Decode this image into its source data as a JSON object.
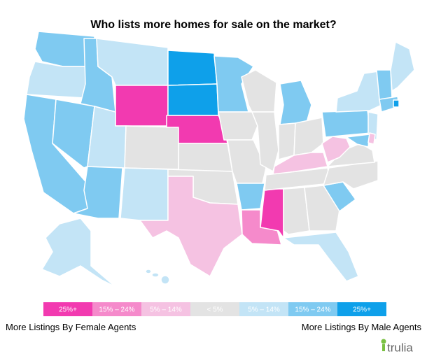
{
  "title": "Who lists more homes for sale on the market?",
  "legend": [
    {
      "label": "25%+",
      "color": "#f23ab0"
    },
    {
      "label": "15% – 24%",
      "color": "#f58acb"
    },
    {
      "label": "5% – 14%",
      "color": "#f5c2e2"
    },
    {
      "label": "< 5%",
      "color": "#e3e3e3"
    },
    {
      "label": "5% – 14%",
      "color": "#c3e4f6"
    },
    {
      "label": "15% – 24%",
      "color": "#7fcaf1"
    },
    {
      "label": "25%+",
      "color": "#0ea0ea"
    }
  ],
  "left_label": "More Listings By Female Agents",
  "right_label": "More Listings By Male Agents",
  "logo": "trulia"
}
